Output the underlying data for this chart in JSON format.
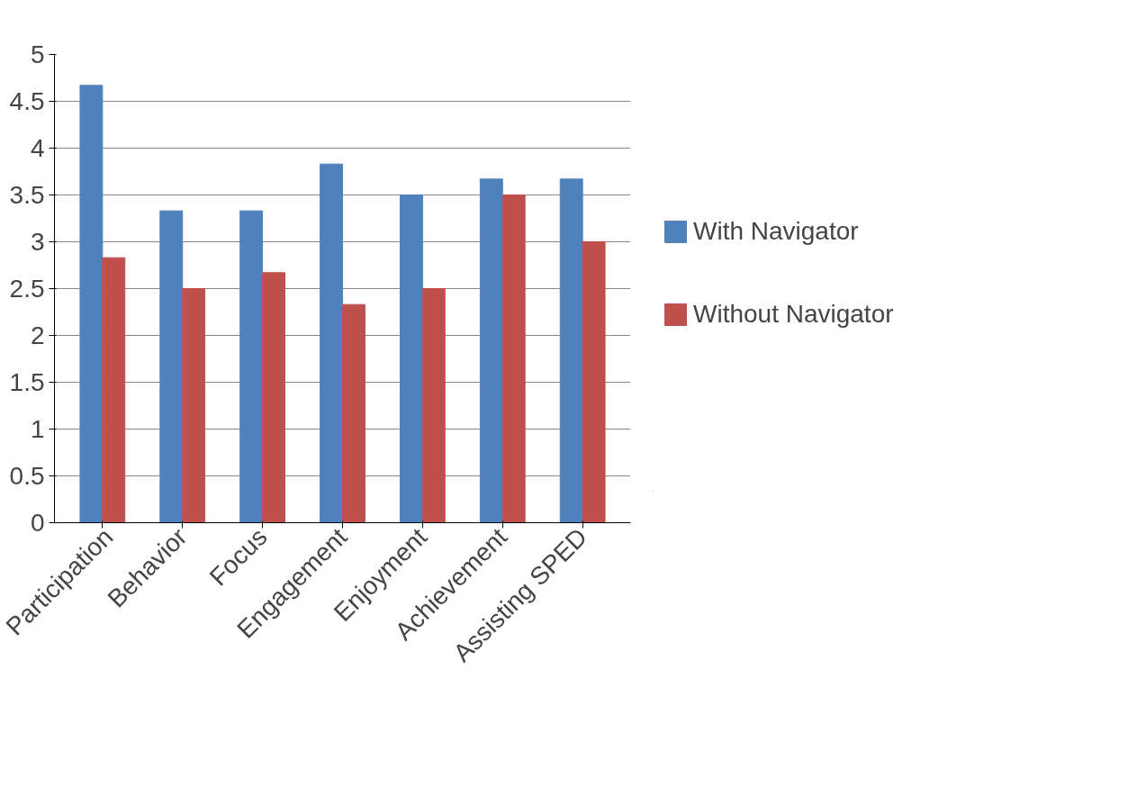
{
  "chart_data": {
    "type": "bar",
    "categories": [
      "Participation",
      "Behavior",
      "Focus",
      "Engagement",
      "Enjoyment",
      "Achievement",
      "Assisting SPED"
    ],
    "series": [
      {
        "name": "With Navigator",
        "color": "#4f81bd",
        "values": [
          4.67,
          3.33,
          3.33,
          3.83,
          3.5,
          3.67,
          3.67
        ]
      },
      {
        "name": "Without Navigator",
        "color": "#c0504d",
        "values": [
          2.83,
          2.5,
          2.67,
          2.33,
          2.5,
          3.5,
          3.0
        ]
      }
    ],
    "ylim": [
      0,
      5
    ],
    "yticks": [
      0,
      0.5,
      1,
      1.5,
      2,
      2.5,
      3,
      3.5,
      4,
      4.5,
      5
    ],
    "grid": "y",
    "legend": "right"
  }
}
